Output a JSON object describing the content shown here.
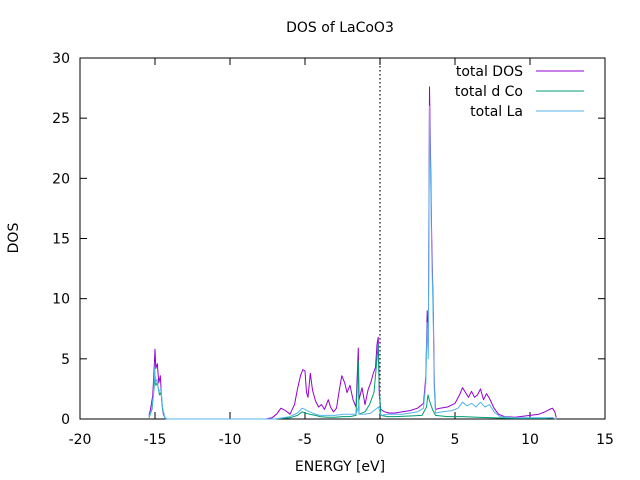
{
  "chart_data": {
    "type": "line",
    "title": "DOS of LaCoO3",
    "xlabel": "ENERGY [eV]",
    "ylabel": "DOS",
    "xlim": [
      -20,
      15
    ],
    "ylim": [
      0,
      30
    ],
    "xticks": [
      -20,
      -15,
      -10,
      -5,
      0,
      5,
      10,
      15
    ],
    "yticks": [
      0,
      5,
      10,
      15,
      20,
      25,
      30
    ],
    "grid": false,
    "legend_position": "top-right",
    "fermi_line_x": 0,
    "series": [
      {
        "name": "total DOS",
        "color": "#9400d3",
        "points": [
          [
            -15.4,
            0.3
          ],
          [
            -15.3,
            0.8
          ],
          [
            -15.15,
            2.0
          ],
          [
            -15.05,
            4.5
          ],
          [
            -15.0,
            5.8
          ],
          [
            -14.95,
            4.2
          ],
          [
            -14.85,
            4.6
          ],
          [
            -14.75,
            3.0
          ],
          [
            -14.65,
            3.6
          ],
          [
            -14.55,
            1.5
          ],
          [
            -14.45,
            0.4
          ],
          [
            -14.3,
            0.0
          ],
          [
            -7.6,
            0.0
          ],
          [
            -7.2,
            0.1
          ],
          [
            -6.9,
            0.4
          ],
          [
            -6.6,
            0.9
          ],
          [
            -6.3,
            0.7
          ],
          [
            -6.0,
            0.4
          ],
          [
            -5.7,
            1.2
          ],
          [
            -5.5,
            2.5
          ],
          [
            -5.3,
            3.6
          ],
          [
            -5.15,
            4.1
          ],
          [
            -5.0,
            4.0
          ],
          [
            -4.9,
            2.2
          ],
          [
            -4.8,
            1.8
          ],
          [
            -4.65,
            3.8
          ],
          [
            -4.5,
            2.4
          ],
          [
            -4.3,
            1.5
          ],
          [
            -4.1,
            1.0
          ],
          [
            -3.9,
            1.2
          ],
          [
            -3.7,
            0.8
          ],
          [
            -3.45,
            1.6
          ],
          [
            -3.3,
            1.0
          ],
          [
            -3.1,
            0.6
          ],
          [
            -2.9,
            0.9
          ],
          [
            -2.7,
            2.5
          ],
          [
            -2.55,
            3.6
          ],
          [
            -2.35,
            3.0
          ],
          [
            -2.2,
            2.2
          ],
          [
            -2.0,
            2.8
          ],
          [
            -1.8,
            1.6
          ],
          [
            -1.6,
            1.0
          ],
          [
            -1.45,
            5.9
          ],
          [
            -1.4,
            1.6
          ],
          [
            -1.2,
            2.6
          ],
          [
            -1.0,
            1.2
          ],
          [
            -0.8,
            2.4
          ],
          [
            -0.6,
            3.1
          ],
          [
            -0.45,
            3.8
          ],
          [
            -0.3,
            4.3
          ],
          [
            -0.2,
            6.2
          ],
          [
            -0.12,
            6.8
          ],
          [
            -0.05,
            2.0
          ],
          [
            0.05,
            0.8
          ],
          [
            0.3,
            0.6
          ],
          [
            0.6,
            0.5
          ],
          [
            1.0,
            0.5
          ],
          [
            1.5,
            0.6
          ],
          [
            2.0,
            0.7
          ],
          [
            2.5,
            0.9
          ],
          [
            2.9,
            1.3
          ],
          [
            3.05,
            3.5
          ],
          [
            3.15,
            9.0
          ],
          [
            3.22,
            6.0
          ],
          [
            3.3,
            27.6
          ],
          [
            3.38,
            21.0
          ],
          [
            3.45,
            15.0
          ],
          [
            3.55,
            9.0
          ],
          [
            3.62,
            3.0
          ],
          [
            3.7,
            0.8
          ],
          [
            4.0,
            0.9
          ],
          [
            4.5,
            1.0
          ],
          [
            5.0,
            1.3
          ],
          [
            5.3,
            2.0
          ],
          [
            5.5,
            2.6
          ],
          [
            5.7,
            2.2
          ],
          [
            5.9,
            1.8
          ],
          [
            6.1,
            2.3
          ],
          [
            6.3,
            1.8
          ],
          [
            6.5,
            2.0
          ],
          [
            6.7,
            2.5
          ],
          [
            6.9,
            1.6
          ],
          [
            7.1,
            2.1
          ],
          [
            7.3,
            1.7
          ],
          [
            7.6,
            0.9
          ],
          [
            7.9,
            0.4
          ],
          [
            8.3,
            0.2
          ],
          [
            9.0,
            0.15
          ],
          [
            10.0,
            0.3
          ],
          [
            10.6,
            0.4
          ],
          [
            11.0,
            0.6
          ],
          [
            11.3,
            0.8
          ],
          [
            11.5,
            0.9
          ],
          [
            11.65,
            0.6
          ],
          [
            11.75,
            0.1
          ]
        ]
      },
      {
        "name": "total d Co",
        "color": "#009e73",
        "points": [
          [
            -15.4,
            0.1
          ],
          [
            -15.2,
            0.8
          ],
          [
            -15.05,
            2.8
          ],
          [
            -15.0,
            3.6
          ],
          [
            -14.95,
            2.8
          ],
          [
            -14.85,
            3.0
          ],
          [
            -14.7,
            2.0
          ],
          [
            -14.6,
            2.2
          ],
          [
            -14.5,
            0.8
          ],
          [
            -14.35,
            0.1
          ],
          [
            -14.2,
            0.0
          ],
          [
            -7.0,
            0.0
          ],
          [
            -6.5,
            0.05
          ],
          [
            -6.0,
            0.1
          ],
          [
            -5.5,
            0.3
          ],
          [
            -5.2,
            0.6
          ],
          [
            -5.0,
            0.5
          ],
          [
            -4.7,
            0.4
          ],
          [
            -4.3,
            0.3
          ],
          [
            -4.0,
            0.2
          ],
          [
            -3.5,
            0.15
          ],
          [
            -3.0,
            0.15
          ],
          [
            -2.5,
            0.2
          ],
          [
            -2.0,
            0.2
          ],
          [
            -1.6,
            0.3
          ],
          [
            -1.45,
            4.8
          ],
          [
            -1.4,
            0.4
          ],
          [
            -1.0,
            0.6
          ],
          [
            -0.7,
            1.2
          ],
          [
            -0.4,
            2.2
          ],
          [
            -0.2,
            5.0
          ],
          [
            -0.12,
            6.2
          ],
          [
            -0.05,
            2.5
          ],
          [
            0.05,
            0.3
          ],
          [
            0.5,
            0.2
          ],
          [
            1.0,
            0.2
          ],
          [
            2.0,
            0.25
          ],
          [
            2.8,
            0.3
          ],
          [
            3.1,
            1.0
          ],
          [
            3.2,
            2.0
          ],
          [
            3.3,
            1.5
          ],
          [
            3.5,
            0.8
          ],
          [
            3.7,
            0.3
          ],
          [
            4.5,
            0.2
          ],
          [
            5.5,
            0.2
          ],
          [
            6.5,
            0.15
          ],
          [
            7.5,
            0.1
          ],
          [
            9.0,
            0.05
          ],
          [
            11.0,
            0.05
          ],
          [
            11.5,
            0.1
          ],
          [
            11.75,
            0.0
          ]
        ]
      },
      {
        "name": "total La",
        "color": "#56b4e9",
        "points": [
          [
            -15.4,
            0.2
          ],
          [
            -15.25,
            0.7
          ],
          [
            -15.1,
            2.0
          ],
          [
            -15.02,
            4.3
          ],
          [
            -14.97,
            3.0
          ],
          [
            -14.87,
            3.3
          ],
          [
            -14.75,
            2.3
          ],
          [
            -14.6,
            2.5
          ],
          [
            -14.5,
            1.0
          ],
          [
            -14.35,
            0.1
          ],
          [
            -14.2,
            0.0
          ],
          [
            -7.0,
            0.0
          ],
          [
            -6.5,
            0.1
          ],
          [
            -6.0,
            0.2
          ],
          [
            -5.5,
            0.5
          ],
          [
            -5.2,
            0.9
          ],
          [
            -5.0,
            0.8
          ],
          [
            -4.7,
            0.6
          ],
          [
            -4.3,
            0.4
          ],
          [
            -4.0,
            0.3
          ],
          [
            -3.5,
            0.3
          ],
          [
            -3.0,
            0.3
          ],
          [
            -2.5,
            0.4
          ],
          [
            -2.0,
            0.4
          ],
          [
            -1.6,
            0.4
          ],
          [
            -1.45,
            1.0
          ],
          [
            -1.4,
            0.4
          ],
          [
            -1.0,
            0.4
          ],
          [
            -0.6,
            0.5
          ],
          [
            -0.3,
            0.8
          ],
          [
            -0.1,
            1.0
          ],
          [
            0.05,
            0.3
          ],
          [
            0.5,
            0.4
          ],
          [
            1.0,
            0.4
          ],
          [
            1.5,
            0.4
          ],
          [
            2.0,
            0.5
          ],
          [
            2.5,
            0.6
          ],
          [
            2.9,
            0.9
          ],
          [
            3.05,
            3.0
          ],
          [
            3.15,
            8.0
          ],
          [
            3.22,
            5.0
          ],
          [
            3.3,
            26.0
          ],
          [
            3.38,
            19.5
          ],
          [
            3.45,
            14.0
          ],
          [
            3.55,
            8.0
          ],
          [
            3.62,
            2.5
          ],
          [
            3.7,
            0.5
          ],
          [
            4.2,
            0.6
          ],
          [
            4.8,
            0.7
          ],
          [
            5.2,
            0.9
          ],
          [
            5.5,
            1.4
          ],
          [
            5.8,
            1.1
          ],
          [
            6.1,
            1.3
          ],
          [
            6.4,
            1.0
          ],
          [
            6.7,
            1.4
          ],
          [
            7.0,
            1.0
          ],
          [
            7.3,
            1.2
          ],
          [
            7.6,
            0.6
          ],
          [
            8.0,
            0.2
          ],
          [
            9.0,
            0.1
          ],
          [
            10.5,
            0.1
          ],
          [
            11.5,
            0.1
          ],
          [
            11.75,
            0.0
          ]
        ]
      }
    ]
  }
}
